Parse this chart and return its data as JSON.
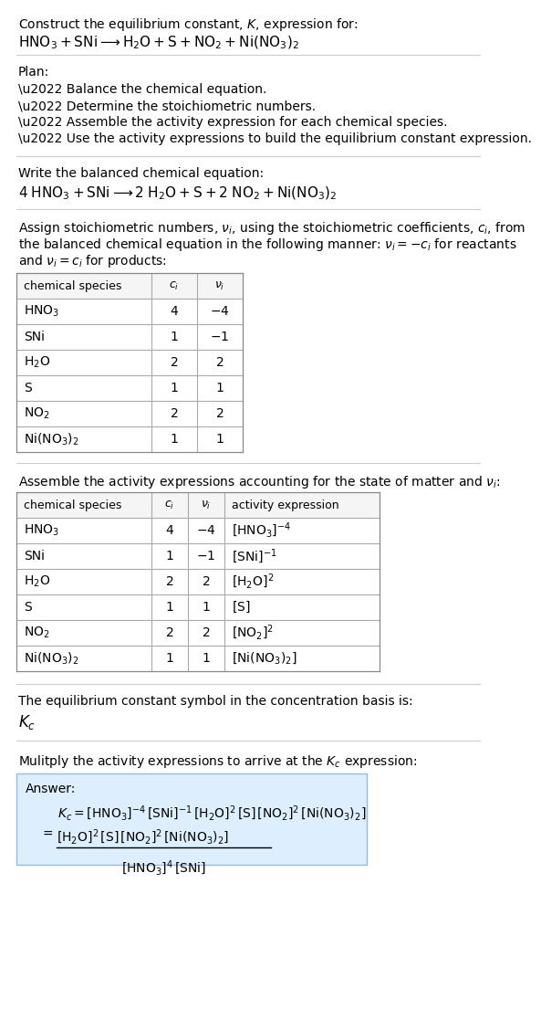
{
  "bg_color": "#ffffff",
  "text_color": "#000000",
  "title_line1": "Construct the equilibrium constant, $K$, expression for:",
  "title_line2": "$\\mathrm{HNO_3 + SNi \\longrightarrow H_2O + S + NO_2 + Ni(NO_3)_2}$",
  "plan_header": "Plan:",
  "plan_items": [
    "\\u2022 Balance the chemical equation.",
    "\\u2022 Determine the stoichiometric numbers.",
    "\\u2022 Assemble the activity expression for each chemical species.",
    "\\u2022 Use the activity expressions to build the equilibrium constant expression."
  ],
  "balanced_header": "Write the balanced chemical equation:",
  "balanced_eq": "$\\mathrm{4\\;HNO_3 + SNi \\longrightarrow 2\\;H_2O + S + 2\\;NO_2 + Ni(NO_3)_2}$",
  "stoich_text": [
    "Assign stoichiometric numbers, $\\nu_i$, using the stoichiometric coefficients, $c_i$, from",
    "the balanced chemical equation in the following manner: $\\nu_i = -c_i$ for reactants",
    "and $\\nu_i = c_i$ for products:"
  ],
  "table1_cols": [
    "chemical species",
    "$c_i$",
    "$\\nu_i$"
  ],
  "table1_data": [
    [
      "$\\mathrm{HNO_3}$",
      "4",
      "$-4$"
    ],
    [
      "SNi",
      "1",
      "$-1$"
    ],
    [
      "$\\mathrm{H_2O}$",
      "2",
      "2"
    ],
    [
      "S",
      "1",
      "1"
    ],
    [
      "$\\mathrm{NO_2}$",
      "2",
      "2"
    ],
    [
      "$\\mathrm{Ni(NO_3)_2}$",
      "1",
      "1"
    ]
  ],
  "activity_header": "Assemble the activity expressions accounting for the state of matter and $\\nu_i$:",
  "table2_cols": [
    "chemical species",
    "$c_i$",
    "$\\nu_i$",
    "activity expression"
  ],
  "table2_data": [
    [
      "$\\mathrm{HNO_3}$",
      "4",
      "$-4$",
      "$[\\mathrm{HNO_3}]^{-4}$"
    ],
    [
      "SNi",
      "1",
      "$-1$",
      "$[\\mathrm{SNi}]^{-1}$"
    ],
    [
      "$\\mathrm{H_2O}$",
      "2",
      "2",
      "$[\\mathrm{H_2O}]^2$"
    ],
    [
      "S",
      "1",
      "1",
      "$[\\mathrm{S}]$"
    ],
    [
      "$\\mathrm{NO_2}$",
      "2",
      "2",
      "$[\\mathrm{NO_2}]^2$"
    ],
    [
      "$\\mathrm{Ni(NO_3)_2}$",
      "1",
      "1",
      "$[\\mathrm{Ni(NO_3)_2}]$"
    ]
  ],
  "kc_header": "The equilibrium constant symbol in the concentration basis is:",
  "kc_symbol": "$K_c$",
  "multiply_header": "Mulitply the activity expressions to arrive at the $K_c$ expression:",
  "answer_box_color": "#ddeeff",
  "table_border_color": "#aaaaaa",
  "divider_color": "#cccccc"
}
